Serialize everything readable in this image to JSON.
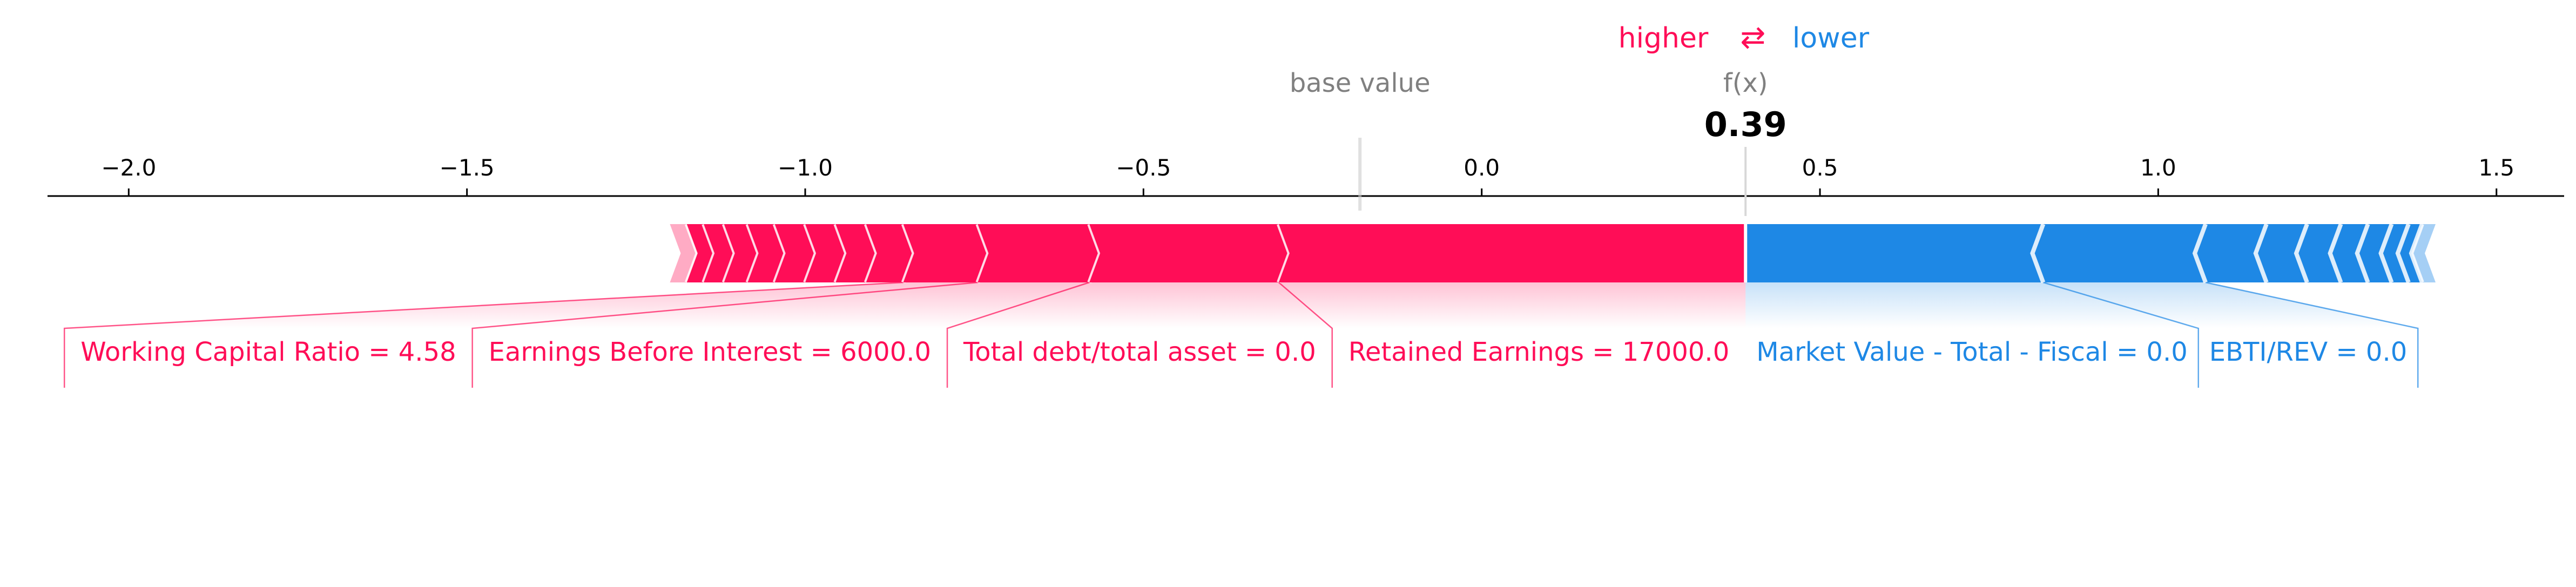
{
  "chart_data": {
    "type": "force",
    "legend": {
      "higher": "higher",
      "arrow": "⇄",
      "lower": "lower"
    },
    "base_value_label": "base value",
    "fx_label": "f(x)",
    "fx_value_text": "0.39",
    "base_value": -0.18,
    "fx_value": 0.39,
    "xlim": [
      -2.12,
      1.6
    ],
    "ticks": [
      -2.0,
      -1.5,
      -1.0,
      -0.5,
      0.0,
      0.5,
      1.0,
      1.5
    ],
    "tick_labels": [
      "−2.0",
      "−1.5",
      "−1.0",
      "−0.5",
      "0.0",
      "0.5",
      "1.0",
      "1.5"
    ],
    "colors": {
      "positive": "#ff0d57",
      "negative": "#1e88e5",
      "base_text": "#808080",
      "fx_text": "#000000"
    },
    "positive_segments": [
      {
        "from": -1.2,
        "to": -1.175
      },
      {
        "from": -1.175,
        "to": -1.15
      },
      {
        "from": -1.15,
        "to": -1.12
      },
      {
        "from": -1.12,
        "to": -1.085
      },
      {
        "from": -1.085,
        "to": -1.045
      },
      {
        "from": -1.045,
        "to": -1.0
      },
      {
        "from": -1.0,
        "to": -0.955
      },
      {
        "from": -0.955,
        "to": -0.91
      },
      {
        "from": -0.91,
        "to": -0.855
      },
      {
        "from": -0.855,
        "to": -0.745
      },
      {
        "from": -0.745,
        "to": -0.58
      },
      {
        "from": -0.58,
        "to": -0.3
      },
      {
        "from": -0.3,
        "to": 0.39
      }
    ],
    "negative_segments": [
      {
        "from": 0.39,
        "to": 0.83
      },
      {
        "from": 0.83,
        "to": 1.07
      },
      {
        "from": 1.07,
        "to": 1.16
      },
      {
        "from": 1.16,
        "to": 1.22
      },
      {
        "from": 1.22,
        "to": 1.27
      },
      {
        "from": 1.27,
        "to": 1.31
      },
      {
        "from": 1.31,
        "to": 1.345
      },
      {
        "from": 1.345,
        "to": 1.37
      },
      {
        "from": 1.37,
        "to": 1.39
      },
      {
        "from": 1.39,
        "to": 1.41
      }
    ],
    "labeled_features": [
      {
        "label": "Working Capital Ratio = 4.58",
        "from": -0.855,
        "to": -0.745,
        "side": "positive"
      },
      {
        "label": "Earnings Before Interest = 6000.0",
        "from": -0.745,
        "to": -0.58,
        "side": "positive"
      },
      {
        "label": "Total debt/total asset = 0.0",
        "from": -0.58,
        "to": -0.3,
        "side": "positive"
      },
      {
        "label": "Retained Earnings = 17000.0",
        "from": -0.3,
        "to": 0.39,
        "side": "positive"
      },
      {
        "label": "Market Value - Total - Fiscal = 0.0",
        "from": 0.39,
        "to": 0.83,
        "side": "negative"
      },
      {
        "label": "EBTI/REV = 0.0",
        "from": 0.83,
        "to": 1.07,
        "side": "negative"
      }
    ]
  }
}
